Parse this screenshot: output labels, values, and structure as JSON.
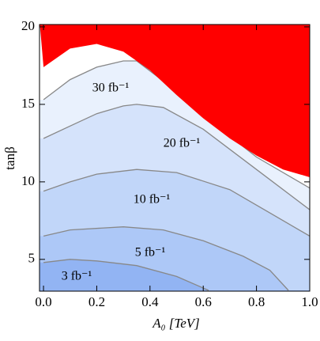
{
  "chart_data": {
    "type": "contour",
    "x_label": "A₀ [TeV]",
    "y_label": "tanβ",
    "xlim": [
      -0.015,
      1.0
    ],
    "ylim": [
      2.95,
      20.15
    ],
    "xticks": [
      {
        "value": 0,
        "label": "0.0"
      },
      {
        "value": 0.2,
        "label": "0.2"
      },
      {
        "value": 0.4,
        "label": "0.4"
      },
      {
        "value": 0.6,
        "label": "0.6"
      },
      {
        "value": 0.8,
        "label": "0.8"
      },
      {
        "value": 1,
        "label": "1.0"
      }
    ],
    "yticks": [
      5,
      10,
      15,
      20
    ],
    "excluded": {
      "color": "#ff0000",
      "x": [
        0,
        0.1,
        0.2,
        0.3,
        0.4,
        0.5,
        0.6,
        0.7,
        0.8,
        0.9,
        1.0
      ],
      "y": [
        17.4,
        18.6,
        18.9,
        18.4,
        17.2,
        15.6,
        14.1,
        12.8,
        11.7,
        10.8,
        10.3
      ]
    },
    "series": [
      {
        "name": "30 fb⁻¹",
        "color": "#e9f1fd",
        "x": [
          0,
          0.1,
          0.2,
          0.3,
          0.35,
          0.45,
          0.6,
          0.8,
          1.0
        ],
        "y": [
          15.3,
          16.6,
          17.4,
          17.8,
          17.8,
          16.5,
          14.3,
          11.6,
          9.6
        ]
      },
      {
        "name": "20 fb⁻¹",
        "color": "#d5e3fb",
        "x": [
          0,
          0.1,
          0.2,
          0.3,
          0.35,
          0.45,
          0.6,
          0.8,
          1.0
        ],
        "y": [
          12.8,
          13.6,
          14.4,
          14.9,
          15.0,
          14.8,
          13.4,
          10.8,
          8.2
        ]
      },
      {
        "name": "10 fb⁻¹",
        "color": "#c1d6f9",
        "x": [
          0,
          0.1,
          0.2,
          0.35,
          0.5,
          0.7,
          0.85,
          1.0
        ],
        "y": [
          9.4,
          10.0,
          10.5,
          10.8,
          10.6,
          9.5,
          8.0,
          6.5
        ]
      },
      {
        "name": "5 fb⁻¹",
        "color": "#adc8f7",
        "x": [
          0,
          0.1,
          0.3,
          0.45,
          0.6,
          0.75,
          0.85,
          0.92
        ],
        "y": [
          6.5,
          6.9,
          7.1,
          6.9,
          6.2,
          5.2,
          4.3,
          3.0
        ]
      },
      {
        "name": "3 fb⁻¹",
        "color": "#92b4f3",
        "x": [
          0,
          0.1,
          0.2,
          0.35,
          0.5,
          0.62
        ],
        "y": [
          4.8,
          5.0,
          4.9,
          4.6,
          3.9,
          3.0
        ]
      }
    ]
  }
}
